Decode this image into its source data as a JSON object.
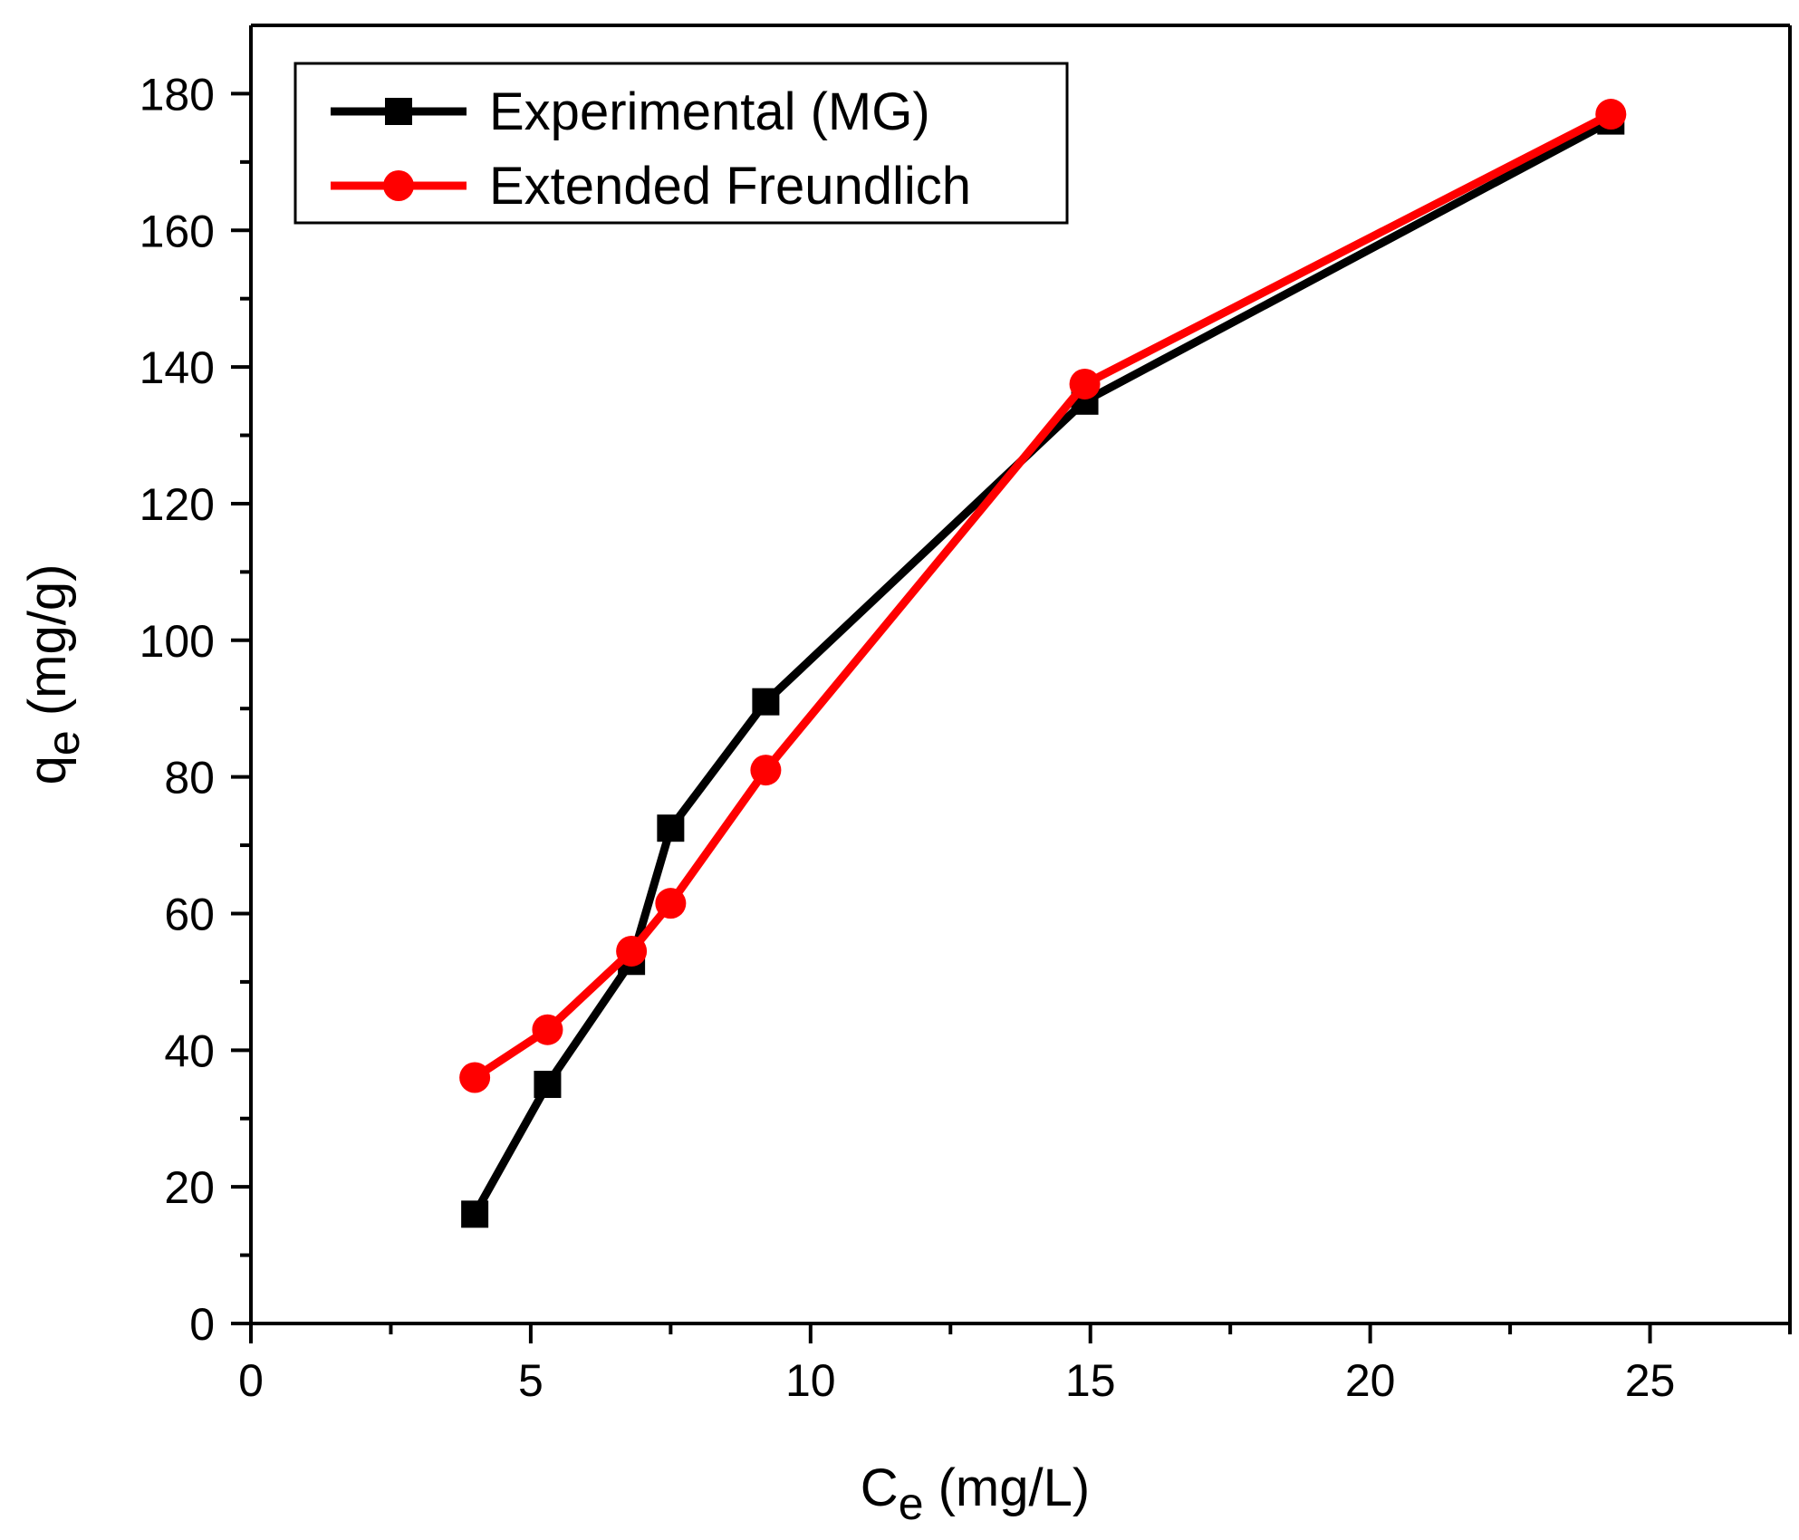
{
  "chart_data": {
    "type": "line",
    "title": "",
    "xlabel": {
      "base": "C",
      "sub": "e",
      "unit": " (mg/L)"
    },
    "ylabel": {
      "base": "q",
      "sub": "e",
      "unit": " (mg/g)"
    },
    "xlim": [
      0,
      27.5
    ],
    "ylim": [
      0,
      190
    ],
    "xticks": [
      0,
      5,
      10,
      15,
      20,
      25
    ],
    "xticks_minor": [
      2.5,
      7.5,
      12.5,
      17.5,
      22.5,
      27.5
    ],
    "yticks": [
      0,
      20,
      40,
      60,
      80,
      100,
      120,
      140,
      160,
      180
    ],
    "yticks_minor": [
      10,
      30,
      50,
      70,
      90,
      110,
      130,
      150,
      170
    ],
    "grid": false,
    "legend_position": "top-left",
    "series": [
      {
        "name": "Experimental (MG)",
        "color": "#000000",
        "marker": "square",
        "x": [
          4.0,
          5.3,
          6.8,
          7.5,
          9.2,
          14.9,
          24.3
        ],
        "y": [
          16,
          35,
          53,
          72.5,
          91,
          135,
          176
        ]
      },
      {
        "name": "Extended Freundlich",
        "color": "#ff0000",
        "marker": "circle",
        "x": [
          4.0,
          5.3,
          6.8,
          7.5,
          9.2,
          14.9,
          24.3
        ],
        "y": [
          36,
          43,
          54.5,
          61.5,
          81,
          137.5,
          177
        ]
      }
    ]
  }
}
